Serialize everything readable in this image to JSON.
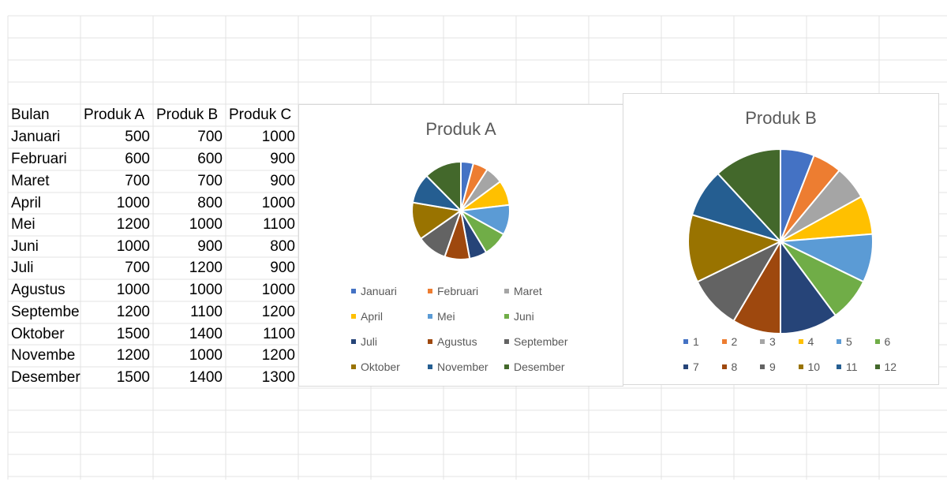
{
  "table": {
    "headers": [
      "Bulan",
      "Produk A",
      "Produk B",
      "Produk C"
    ],
    "rows": [
      [
        "Januari",
        "500",
        "700",
        "1000"
      ],
      [
        "Februari",
        "600",
        "600",
        "900"
      ],
      [
        "Maret",
        "700",
        "700",
        "900"
      ],
      [
        "April",
        "1000",
        "800",
        "1000"
      ],
      [
        "Mei",
        "1200",
        "1000",
        "1100"
      ],
      [
        "Juni",
        "1000",
        "900",
        "800"
      ],
      [
        "Juli",
        "700",
        "1200",
        "900"
      ],
      [
        "Agustus",
        "1000",
        "1000",
        "1000"
      ],
      [
        "Septembe",
        "1200",
        "1100",
        "1200"
      ],
      [
        "Oktober",
        "1500",
        "1400",
        "1100"
      ],
      [
        "Novembe",
        "1200",
        "1000",
        "1200"
      ],
      [
        "Desember",
        "1500",
        "1400",
        "1300"
      ]
    ]
  },
  "colors": [
    "#4472c4",
    "#ed7d31",
    "#a5a5a5",
    "#ffc000",
    "#5b9bd5",
    "#70ad47",
    "#264478",
    "#9e480e",
    "#636363",
    "#997300",
    "#255e91",
    "#43682b"
  ],
  "chart_data": [
    {
      "type": "pie",
      "title": "Produk A",
      "categories": [
        "Januari",
        "Februari",
        "Maret",
        "April",
        "Mei",
        "Juni",
        "Juli",
        "Agustus",
        "September",
        "Oktober",
        "November",
        "Desember"
      ],
      "values": [
        500,
        600,
        700,
        1000,
        1200,
        1000,
        700,
        1000,
        1200,
        1500,
        1200,
        1500
      ],
      "legend_position": "bottom"
    },
    {
      "type": "pie",
      "title": "Produk B",
      "categories": [
        "1",
        "2",
        "3",
        "4",
        "5",
        "6",
        "7",
        "8",
        "9",
        "10",
        "11",
        "12"
      ],
      "values": [
        700,
        600,
        700,
        800,
        1000,
        900,
        1200,
        1000,
        1100,
        1400,
        1000,
        1400
      ],
      "legend_position": "bottom"
    }
  ]
}
